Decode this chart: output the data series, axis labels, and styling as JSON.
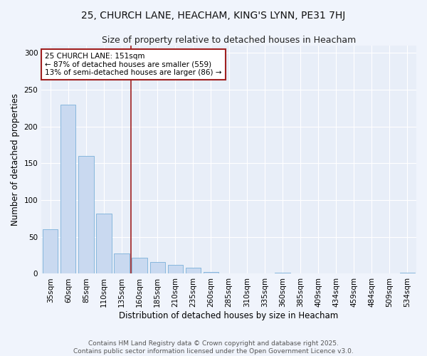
{
  "title_line1": "25, CHURCH LANE, HEACHAM, KING'S LYNN, PE31 7HJ",
  "title_line2": "Size of property relative to detached houses in Heacham",
  "xlabel": "Distribution of detached houses by size in Heacham",
  "ylabel": "Number of detached properties",
  "bar_color": "#c9d9f0",
  "bar_edge_color": "#7ab0d9",
  "bg_color": "#e8eef8",
  "fig_bg_color": "#f0f4fc",
  "categories": [
    "35sqm",
    "60sqm",
    "85sqm",
    "110sqm",
    "135sqm",
    "160sqm",
    "185sqm",
    "210sqm",
    "235sqm",
    "260sqm",
    "285sqm",
    "310sqm",
    "335sqm",
    "360sqm",
    "385sqm",
    "409sqm",
    "434sqm",
    "459sqm",
    "484sqm",
    "509sqm",
    "534sqm"
  ],
  "values": [
    60,
    230,
    160,
    82,
    28,
    22,
    16,
    12,
    8,
    2,
    0,
    0,
    0,
    1,
    0,
    0,
    0,
    0,
    0,
    0,
    1
  ],
  "ylim": [
    0,
    310
  ],
  "yticks": [
    0,
    50,
    100,
    150,
    200,
    250,
    300
  ],
  "property_label": "25 CHURCH LANE: 151sqm",
  "annotation_line1": "← 87% of detached houses are smaller (559)",
  "annotation_line2": "13% of semi-detached houses are larger (86) →",
  "vline_color": "#a02020",
  "annotation_box_edge": "#a02020",
  "footer_line1": "Contains HM Land Registry data © Crown copyright and database right 2025.",
  "footer_line2": "Contains public sector information licensed under the Open Government Licence v3.0.",
  "grid_color": "#ffffff",
  "title_fontsize": 10,
  "subtitle_fontsize": 9,
  "axis_label_fontsize": 8.5,
  "tick_fontsize": 7.5,
  "annotation_fontsize": 7.5,
  "footer_fontsize": 6.5,
  "vline_x": 4.5
}
